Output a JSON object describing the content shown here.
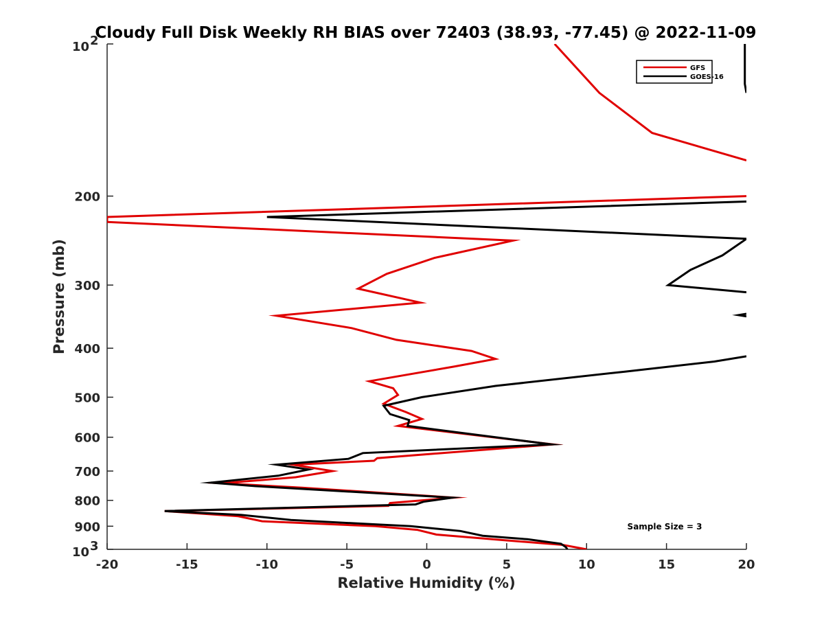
{
  "chart_data": {
    "type": "line",
    "title": "Cloudy Full Disk Weekly RH BIAS over 72403 (38.93, -77.45) @ 2022-11-09",
    "xlabel": "Relative Humidity (%)",
    "ylabel": "Pressure (mb)",
    "xlim": [
      -20,
      20
    ],
    "ylim": [
      100,
      1000
    ],
    "yscale": "log",
    "y_reversed": true,
    "grid": false,
    "legend_position": "top-right",
    "x_ticks": [
      "-20",
      "-15",
      "-10",
      "-5",
      "0",
      "5",
      "10",
      "15",
      "20"
    ],
    "x_tick_values": [
      -20,
      -15,
      -10,
      -5,
      0,
      5,
      10,
      15,
      20
    ],
    "y_ticks": [
      {
        "value": 100,
        "base": "10",
        "exp": "2"
      },
      {
        "value": 200,
        "label": "200"
      },
      {
        "value": 300,
        "label": "300"
      },
      {
        "value": 400,
        "label": "400"
      },
      {
        "value": 500,
        "label": "500"
      },
      {
        "value": 600,
        "label": "600"
      },
      {
        "value": 700,
        "label": "700"
      },
      {
        "value": 800,
        "label": "800"
      },
      {
        "value": 900,
        "label": "900"
      },
      {
        "value": 1000,
        "base": "10",
        "exp": "3"
      }
    ],
    "annotation": "Sample Size = 3",
    "series": [
      {
        "name": "GFS",
        "color": "#e00000",
        "points": [
          [
            8.0,
            100
          ],
          [
            10.8,
            125
          ],
          [
            14.1,
            150
          ],
          [
            20.0,
            170
          ],
          null,
          [
            20.0,
            200
          ],
          [
            -20.0,
            220
          ],
          [
            -20.0,
            225
          ],
          [
            5.4,
            245
          ],
          [
            0.5,
            265
          ],
          [
            -2.5,
            285
          ],
          [
            -4.3,
            305
          ],
          [
            -0.4,
            325
          ],
          [
            -9.4,
            345
          ],
          [
            -4.7,
            365
          ],
          [
            -1.9,
            385
          ],
          [
            2.8,
            405
          ],
          [
            4.3,
            420
          ],
          [
            1.7,
            435
          ],
          [
            -3.6,
            465
          ],
          [
            -2.1,
            480
          ],
          [
            -1.8,
            495
          ],
          [
            -2.7,
            515
          ],
          [
            -1.3,
            535
          ],
          [
            -0.3,
            552
          ],
          [
            -1.8,
            570
          ],
          [
            7.9,
            620
          ],
          [
            -3.1,
            660
          ],
          [
            -3.3,
            668
          ],
          [
            -8.4,
            680
          ],
          [
            -5.9,
            700
          ],
          [
            -8.2,
            720
          ],
          [
            -12.8,
            740
          ],
          [
            -7.8,
            755
          ],
          [
            1.7,
            790
          ],
          [
            -2.3,
            810
          ],
          [
            -2.4,
            820
          ],
          [
            -16.4,
            840
          ],
          [
            -11.8,
            860
          ],
          [
            -10.3,
            880
          ],
          [
            -3.2,
            900
          ],
          [
            -0.6,
            915
          ],
          [
            0.6,
            935
          ],
          [
            5.0,
            960
          ],
          [
            8.5,
            980
          ],
          [
            10.0,
            1000
          ]
        ]
      },
      {
        "name": "GOES-16",
        "color": "#000000",
        "points": [
          [
            19.9,
            100
          ],
          [
            19.9,
            120
          ],
          [
            20.0,
            125
          ],
          null,
          [
            20.0,
            205
          ],
          [
            -10.0,
            220
          ],
          [
            20.0,
            243
          ],
          [
            18.5,
            262
          ],
          [
            16.5,
            280
          ],
          [
            15.1,
            300
          ],
          [
            20.0,
            310
          ],
          null,
          [
            20.0,
            342
          ],
          [
            19.5,
            344
          ],
          [
            20.0,
            346
          ],
          null,
          [
            20.0,
            415
          ],
          [
            18.0,
            425
          ],
          [
            12.4,
            445
          ],
          [
            4.3,
            475
          ],
          [
            -0.3,
            500
          ],
          [
            -2.7,
            520
          ],
          [
            -2.3,
            540
          ],
          [
            -1.1,
            555
          ],
          [
            -1.2,
            570
          ],
          [
            7.8,
            620
          ],
          [
            -4.0,
            645
          ],
          [
            -4.9,
            662
          ],
          [
            -9.4,
            680
          ],
          [
            -7.4,
            695
          ],
          [
            -9.3,
            715
          ],
          [
            -13.5,
            738
          ],
          [
            -10.7,
            750
          ],
          [
            1.6,
            790
          ],
          [
            -0.2,
            805
          ],
          [
            -0.7,
            815
          ],
          [
            -16.4,
            840
          ],
          [
            -11.6,
            855
          ],
          [
            -8.5,
            875
          ],
          [
            -1.0,
            900
          ],
          [
            2.1,
            920
          ],
          [
            3.5,
            940
          ],
          [
            6.3,
            955
          ],
          [
            8.4,
            975
          ],
          [
            8.7,
            990
          ],
          [
            8.8,
            1000
          ]
        ]
      }
    ]
  }
}
